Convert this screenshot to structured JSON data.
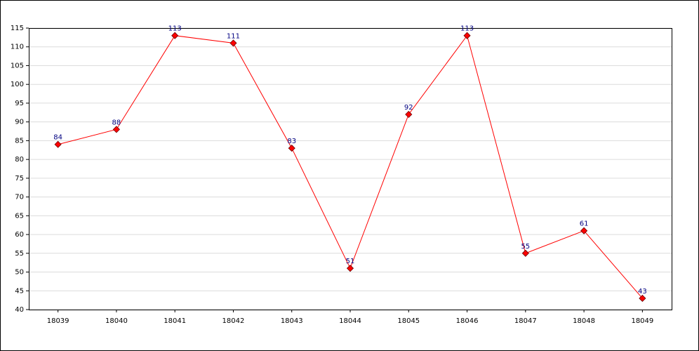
{
  "chart_data": {
    "type": "line",
    "categories": [
      "18039",
      "18040",
      "18041",
      "18042",
      "18043",
      "18044",
      "18045",
      "18046",
      "18047",
      "18048",
      "18049"
    ],
    "series": [
      {
        "color": "#ff0000",
        "values": [
          84,
          88,
          113,
          111,
          83,
          51,
          92,
          113,
          55,
          61,
          43
        ]
      }
    ],
    "ylim": [
      40,
      115
    ],
    "yticks": [
      40,
      45,
      50,
      55,
      60,
      65,
      70,
      75,
      80,
      85,
      90,
      95,
      100,
      105,
      110,
      115
    ],
    "grid": true,
    "data_labels": true
  }
}
